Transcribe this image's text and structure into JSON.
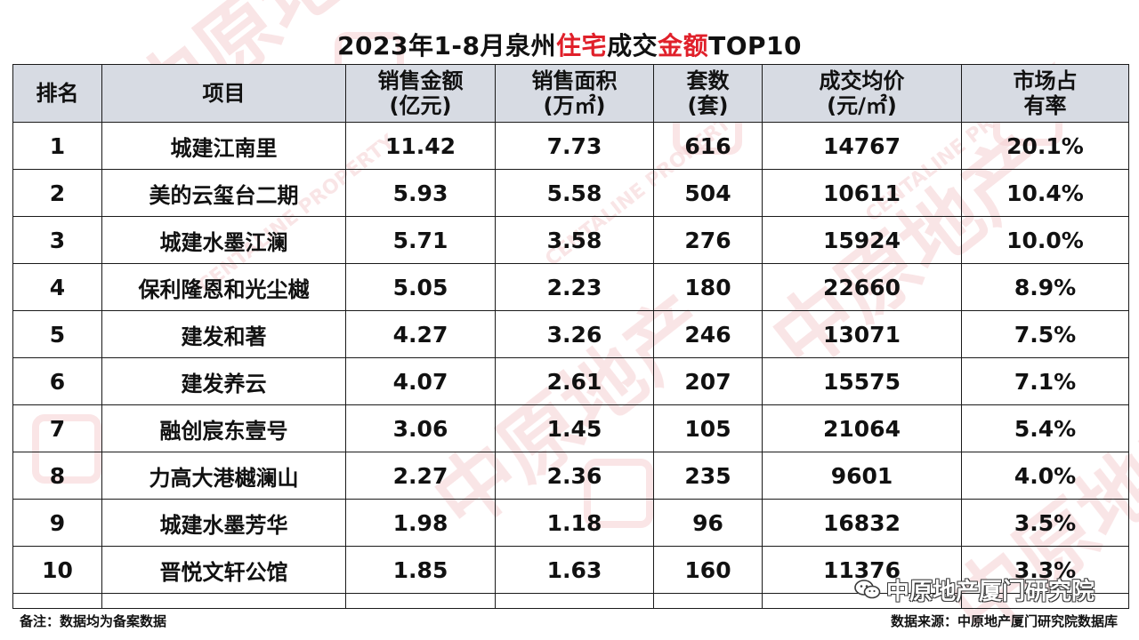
{
  "title": {
    "prefix": "2023年1-8月泉州",
    "highlight1": "住宅",
    "middle": "成交",
    "highlight2": "金额",
    "suffix": "TOP10"
  },
  "columns": [
    {
      "line1": "排名",
      "line2": ""
    },
    {
      "line1": "项目",
      "line2": ""
    },
    {
      "line1": "销售金额",
      "line2": "(亿元)"
    },
    {
      "line1": "销售面积",
      "line2": "(万㎡)"
    },
    {
      "line1": "套数",
      "line2": "(套)"
    },
    {
      "line1": "成交均价",
      "line2": "(元/㎡)"
    },
    {
      "line1": "市场占",
      "line2": "有率"
    }
  ],
  "rows": [
    {
      "rank": "1",
      "project": "城建江南里",
      "amount": "11.42",
      "area": "7.73",
      "units": "616",
      "price": "14767",
      "share": "20.1%"
    },
    {
      "rank": "2",
      "project": "美的云玺台二期",
      "amount": "5.93",
      "area": "5.58",
      "units": "504",
      "price": "10611",
      "share": "10.4%"
    },
    {
      "rank": "3",
      "project": "城建水墨江澜",
      "amount": "5.71",
      "area": "3.58",
      "units": "276",
      "price": "15924",
      "share": "10.0%"
    },
    {
      "rank": "4",
      "project": "保利隆恩和光尘樾",
      "amount": "5.05",
      "area": "2.23",
      "units": "180",
      "price": "22660",
      "share": "8.9%"
    },
    {
      "rank": "5",
      "project": "建发和著",
      "amount": "4.27",
      "area": "3.26",
      "units": "246",
      "price": "13071",
      "share": "7.5%"
    },
    {
      "rank": "6",
      "project": "建发养云",
      "amount": "4.07",
      "area": "2.61",
      "units": "207",
      "price": "15575",
      "share": "7.1%"
    },
    {
      "rank": "7",
      "project": "融创宸东壹号",
      "amount": "3.06",
      "area": "1.45",
      "units": "105",
      "price": "21064",
      "share": "5.4%"
    },
    {
      "rank": "8",
      "project": "力高大港樾澜山",
      "amount": "2.27",
      "area": "2.36",
      "units": "235",
      "price": "9601",
      "share": "4.0%"
    },
    {
      "rank": "9",
      "project": "城建水墨芳华",
      "amount": "1.98",
      "area": "1.18",
      "units": "96",
      "price": "16832",
      "share": "3.5%"
    },
    {
      "rank": "10",
      "project": "晋悦文轩公馆",
      "amount": "1.85",
      "area": "1.63",
      "units": "160",
      "price": "11376",
      "share": "3.3%"
    }
  ],
  "footer": {
    "note": "备注：数据均为备案数据",
    "source": "数据来源：中原地产厦门研究院数据库"
  },
  "wechat": {
    "label": "中原地产厦门研究院",
    "icon": "wechat-icon"
  },
  "watermark": {
    "text_cn": "中原地产",
    "text_en": "CENTALINE PROPERTY",
    "color": "#f3c9cb"
  },
  "colors": {
    "highlight": "#e0202a",
    "header_bg": "#d7dbe3"
  }
}
